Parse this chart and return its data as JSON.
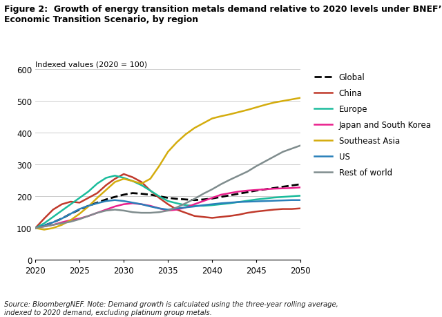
{
  "title_line1": "Figure 2:  Growth of energy transition metals demand relative to 2020 levels under BNEF’s",
  "title_line2": "Economic Transition Scenario, by region",
  "ylabel": "Indexed values (2020 = 100)",
  "source_note": "Source: BloombergNEF. Note: Demand growth is calculated using the three-year rolling average,\nindexed to 2020 demand, excluding platinum group metals.",
  "xlim": [
    2020,
    2050
  ],
  "ylim": [
    0,
    600
  ],
  "yticks": [
    0,
    100,
    200,
    300,
    400,
    500,
    600
  ],
  "xticks": [
    2020,
    2025,
    2030,
    2035,
    2040,
    2045,
    2050
  ],
  "series": {
    "Global": {
      "color": "#000000",
      "linestyle": "dashed",
      "linewidth": 2.0,
      "data": {
        "x": [
          2020,
          2021,
          2022,
          2023,
          2024,
          2025,
          2026,
          2027,
          2028,
          2029,
          2030,
          2031,
          2032,
          2033,
          2034,
          2035,
          2036,
          2037,
          2038,
          2039,
          2040,
          2041,
          2042,
          2043,
          2044,
          2045,
          2046,
          2047,
          2048,
          2049,
          2050
        ],
        "y": [
          100,
          108,
          118,
          130,
          145,
          158,
          170,
          180,
          190,
          198,
          205,
          210,
          208,
          205,
          200,
          195,
          192,
          190,
          188,
          190,
          193,
          198,
          203,
          208,
          213,
          218,
          222,
          226,
          230,
          234,
          238
        ]
      }
    },
    "China": {
      "color": "#c0392b",
      "linestyle": "solid",
      "linewidth": 1.8,
      "data": {
        "x": [
          2020,
          2021,
          2022,
          2023,
          2024,
          2025,
          2026,
          2027,
          2028,
          2029,
          2030,
          2031,
          2032,
          2033,
          2034,
          2035,
          2036,
          2037,
          2038,
          2039,
          2040,
          2041,
          2042,
          2043,
          2044,
          2045,
          2046,
          2047,
          2048,
          2049,
          2050
        ],
        "y": [
          100,
          130,
          158,
          175,
          183,
          180,
          195,
          210,
          235,
          255,
          270,
          260,
          245,
          218,
          195,
          175,
          158,
          148,
          138,
          135,
          132,
          135,
          138,
          142,
          148,
          152,
          155,
          158,
          160,
          160,
          162
        ]
      }
    },
    "Europe": {
      "color": "#1abc9c",
      "linestyle": "solid",
      "linewidth": 1.8,
      "data": {
        "x": [
          2020,
          2021,
          2022,
          2023,
          2024,
          2025,
          2026,
          2027,
          2028,
          2029,
          2030,
          2031,
          2032,
          2033,
          2034,
          2035,
          2036,
          2037,
          2038,
          2039,
          2040,
          2041,
          2042,
          2043,
          2044,
          2045,
          2046,
          2047,
          2048,
          2049,
          2050
        ],
        "y": [
          100,
          115,
          135,
          155,
          175,
          195,
          215,
          240,
          258,
          265,
          258,
          248,
          235,
          218,
          200,
          185,
          178,
          172,
          170,
          170,
          172,
          175,
          178,
          182,
          186,
          190,
          193,
          196,
          198,
          200,
          202
        ]
      }
    },
    "Japan and South Korea": {
      "color": "#e91e8c",
      "linestyle": "solid",
      "linewidth": 1.8,
      "data": {
        "x": [
          2020,
          2021,
          2022,
          2023,
          2024,
          2025,
          2026,
          2027,
          2028,
          2029,
          2030,
          2031,
          2032,
          2033,
          2034,
          2035,
          2036,
          2037,
          2038,
          2039,
          2040,
          2041,
          2042,
          2043,
          2044,
          2045,
          2046,
          2047,
          2048,
          2049,
          2050
        ],
        "y": [
          100,
          105,
          110,
          118,
          125,
          130,
          138,
          148,
          158,
          168,
          175,
          178,
          175,
          170,
          162,
          155,
          158,
          165,
          175,
          185,
          195,
          205,
          210,
          215,
          218,
          220,
          222,
          224,
          225,
          226,
          228
        ]
      }
    },
    "Southeast Asia": {
      "color": "#d4ac0d",
      "linestyle": "solid",
      "linewidth": 1.8,
      "data": {
        "x": [
          2020,
          2021,
          2022,
          2023,
          2024,
          2025,
          2026,
          2027,
          2028,
          2029,
          2030,
          2031,
          2032,
          2033,
          2034,
          2035,
          2036,
          2037,
          2038,
          2039,
          2040,
          2041,
          2042,
          2043,
          2044,
          2045,
          2046,
          2047,
          2048,
          2049,
          2050
        ],
        "y": [
          100,
          95,
          100,
          110,
          125,
          145,
          168,
          195,
          220,
          245,
          255,
          248,
          240,
          255,
          295,
          340,
          370,
          395,
          415,
          430,
          445,
          452,
          458,
          465,
          472,
          480,
          488,
          495,
          500,
          505,
          510
        ]
      }
    },
    "US": {
      "color": "#2980b9",
      "linestyle": "solid",
      "linewidth": 1.8,
      "data": {
        "x": [
          2020,
          2021,
          2022,
          2023,
          2024,
          2025,
          2026,
          2027,
          2028,
          2029,
          2030,
          2031,
          2032,
          2033,
          2034,
          2035,
          2036,
          2037,
          2038,
          2039,
          2040,
          2041,
          2042,
          2043,
          2044,
          2045,
          2046,
          2047,
          2048,
          2049,
          2050
        ],
        "y": [
          100,
          108,
          118,
          130,
          145,
          160,
          170,
          178,
          185,
          188,
          185,
          180,
          175,
          168,
          162,
          158,
          162,
          165,
          168,
          172,
          175,
          178,
          180,
          182,
          183,
          184,
          185,
          186,
          187,
          188,
          188
        ]
      }
    },
    "Rest of world": {
      "color": "#7f8c8d",
      "linestyle": "solid",
      "linewidth": 1.8,
      "data": {
        "x": [
          2020,
          2021,
          2022,
          2023,
          2024,
          2025,
          2026,
          2027,
          2028,
          2029,
          2030,
          2031,
          2032,
          2033,
          2034,
          2035,
          2036,
          2037,
          2038,
          2039,
          2040,
          2041,
          2042,
          2043,
          2044,
          2045,
          2046,
          2047,
          2048,
          2049,
          2050
        ],
        "y": [
          100,
          105,
          110,
          115,
          120,
          128,
          138,
          148,
          155,
          158,
          155,
          150,
          148,
          148,
          150,
          155,
          165,
          178,
          192,
          208,
          222,
          238,
          252,
          265,
          278,
          295,
          310,
          325,
          340,
          350,
          360
        ]
      }
    }
  }
}
